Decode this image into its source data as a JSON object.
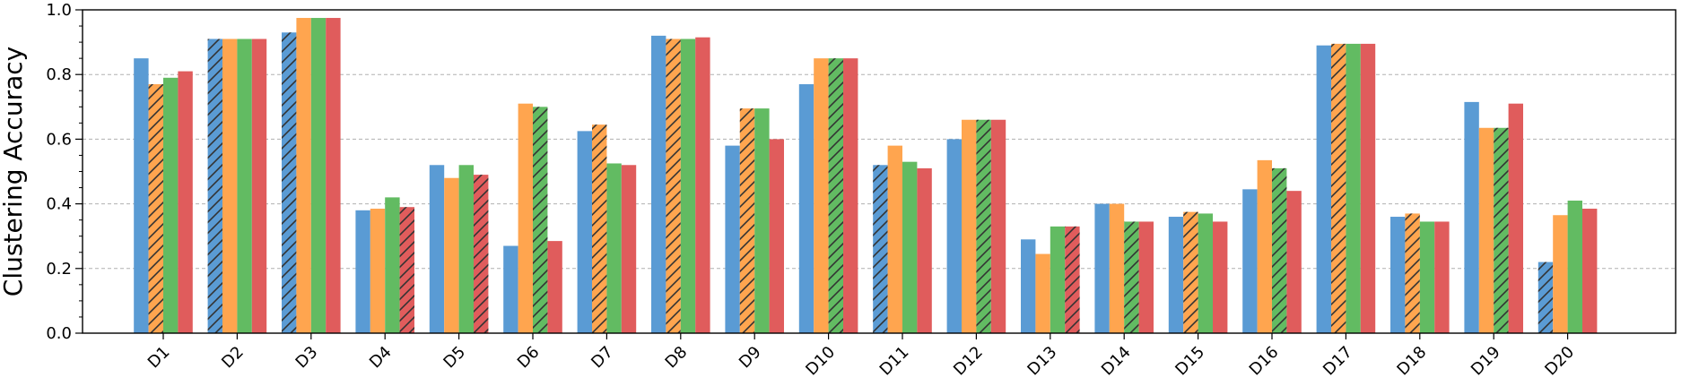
{
  "chart_data": {
    "type": "bar",
    "title": "",
    "xlabel": "",
    "ylabel": "Clustering Accuracy",
    "ylim": [
      0,
      1.0
    ],
    "yticks": [
      "0.0",
      "0.2",
      "0.4",
      "0.6",
      "0.8",
      "1.0"
    ],
    "grid": "y-dashed",
    "categories": [
      "D1",
      "D2",
      "D3",
      "D4",
      "D5",
      "D6",
      "D7",
      "D8",
      "D9",
      "D10",
      "D11",
      "D12",
      "D13",
      "D14",
      "D15",
      "D16",
      "D17",
      "D18",
      "D19",
      "D20"
    ],
    "colors": [
      "#5a9bd4",
      "#ffa54f",
      "#62bb62",
      "#e05c5c"
    ],
    "series": [
      {
        "values": [
          0.85,
          0.91,
          0.93,
          0.38,
          0.52,
          0.27,
          0.625,
          0.92,
          0.58,
          0.77,
          0.52,
          0.6,
          0.29,
          0.4,
          0.36,
          0.445,
          0.89,
          0.36,
          0.715,
          0.22
        ]
      },
      {
        "values": [
          0.77,
          0.91,
          0.975,
          0.385,
          0.48,
          0.71,
          0.645,
          0.91,
          0.695,
          0.85,
          0.58,
          0.66,
          0.245,
          0.4,
          0.375,
          0.535,
          0.895,
          0.37,
          0.635,
          0.365
        ]
      },
      {
        "values": [
          0.79,
          0.91,
          0.975,
          0.42,
          0.52,
          0.7,
          0.525,
          0.91,
          0.695,
          0.85,
          0.53,
          0.66,
          0.33,
          0.345,
          0.37,
          0.51,
          0.895,
          0.345,
          0.635,
          0.41
        ]
      },
      {
        "values": [
          0.81,
          0.91,
          0.975,
          0.39,
          0.49,
          0.285,
          0.52,
          0.915,
          0.6,
          0.85,
          0.51,
          0.66,
          0.33,
          0.345,
          0.345,
          0.44,
          0.895,
          0.345,
          0.71,
          0.385
        ]
      }
    ],
    "hatched": [
      [
        false,
        true,
        false,
        false
      ],
      [
        true,
        false,
        false,
        false
      ],
      [
        true,
        false,
        false,
        false
      ],
      [
        false,
        false,
        false,
        true
      ],
      [
        false,
        false,
        false,
        true
      ],
      [
        false,
        false,
        true,
        false
      ],
      [
        false,
        true,
        false,
        false
      ],
      [
        false,
        true,
        false,
        false
      ],
      [
        false,
        true,
        false,
        false
      ],
      [
        false,
        false,
        true,
        false
      ],
      [
        true,
        false,
        false,
        false
      ],
      [
        false,
        false,
        true,
        false
      ],
      [
        false,
        false,
        false,
        true
      ],
      [
        false,
        false,
        true,
        false
      ],
      [
        false,
        true,
        false,
        false
      ],
      [
        false,
        false,
        true,
        false
      ],
      [
        false,
        true,
        false,
        false
      ],
      [
        false,
        true,
        false,
        false
      ],
      [
        false,
        false,
        true,
        false
      ],
      [
        true,
        false,
        false,
        false
      ]
    ]
  }
}
